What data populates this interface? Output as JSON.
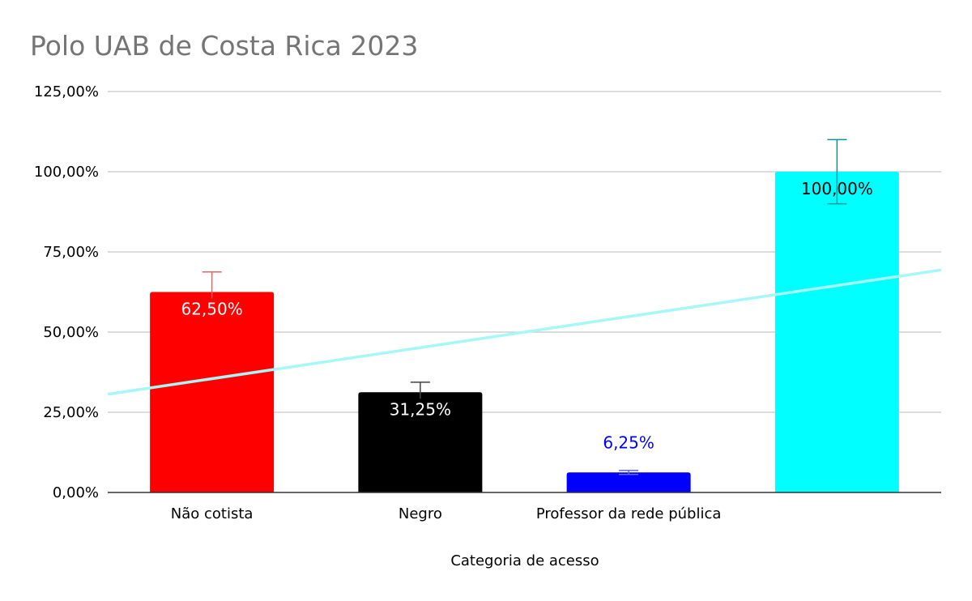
{
  "chart_data": {
    "type": "bar",
    "title": "Polo UAB de Costa Rica 2023",
    "xlabel": "Categoria de acesso",
    "ylabel": "",
    "ylim": [
      0,
      125
    ],
    "y_ticks": [
      0,
      25,
      50,
      75,
      100,
      125
    ],
    "y_tick_labels": [
      "0,00%",
      "25,00%",
      "50,00%",
      "75,00%",
      "100,00%",
      "125,00%"
    ],
    "grid": true,
    "legend": "none",
    "categories": [
      "Não cotista",
      "Negro",
      "Professor da rede pública",
      ""
    ],
    "values": [
      62.5,
      31.25,
      6.25,
      100
    ],
    "value_labels": [
      "62,50%",
      "31,25%",
      "6,25%",
      "100,00%"
    ],
    "bar_colors": [
      "#ff0000",
      "#000000",
      "#0000ff",
      "#00ffff"
    ],
    "label_colors": [
      "#ffffff",
      "#ffffff",
      "#0000ff",
      "#000000"
    ],
    "error_plus": [
      6.25,
      3.125,
      0.625,
      10
    ],
    "error_minus": [
      0,
      0,
      0.625,
      10
    ],
    "error_colors": [
      "#e06666",
      "#434343",
      "#6666cc",
      "#009999"
    ],
    "trendline": {
      "type": "linear",
      "color": "#a6f7f7",
      "start_value": 30.625,
      "end_value": 69.375
    }
  }
}
